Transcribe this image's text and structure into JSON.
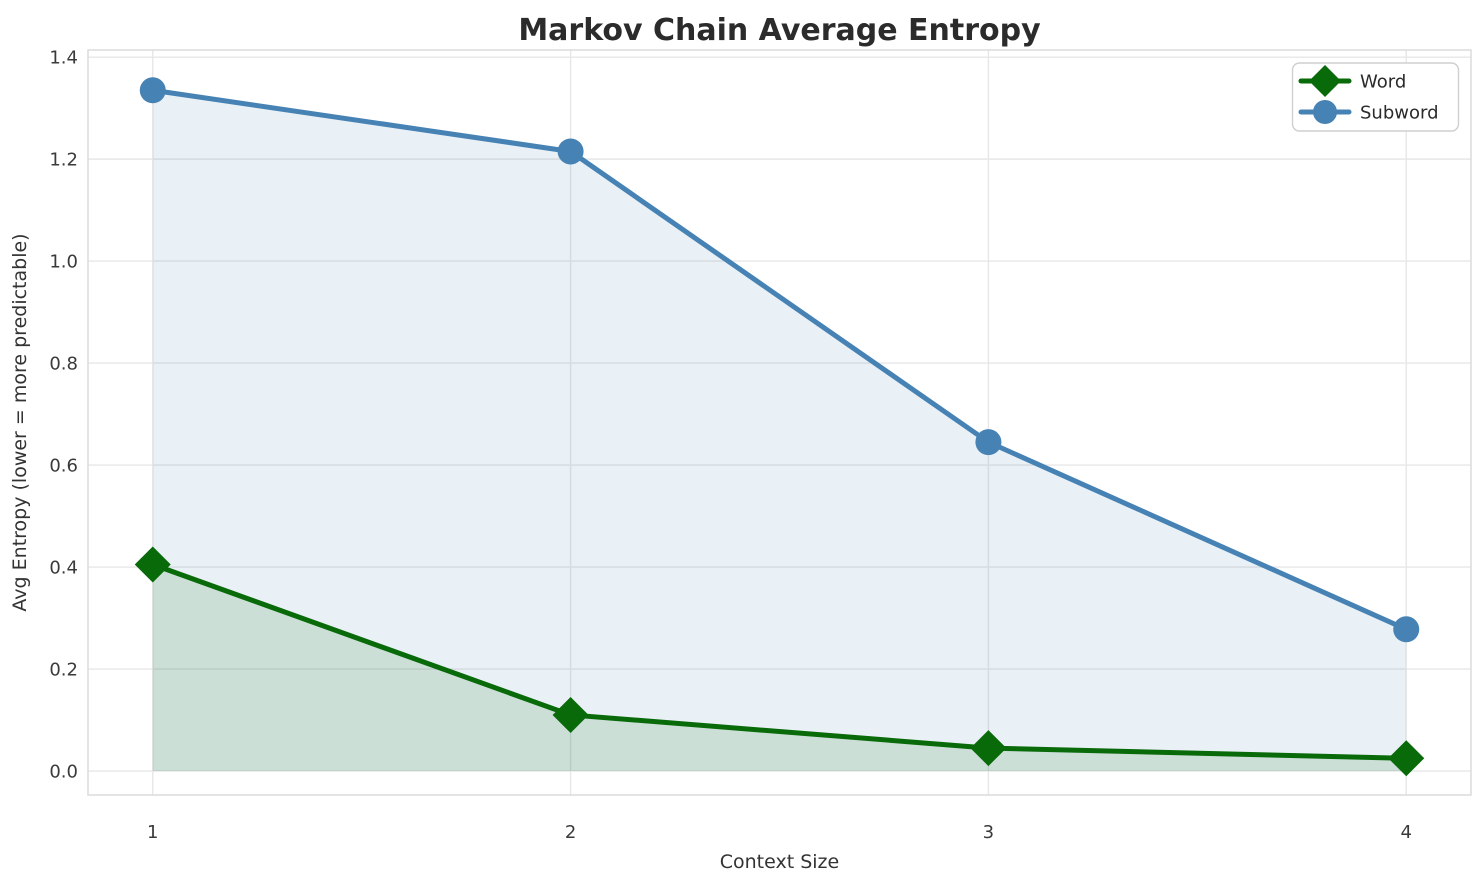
{
  "figure": {
    "title": "Markov Chain Average Entropy",
    "xlabel": "Context Size",
    "ylabel": "Avg Entropy (lower = more predictable)",
    "background": "#ffffff"
  },
  "chart_data": {
    "type": "line",
    "title": "Markov Chain Average Entropy",
    "xlabel": "Context Size",
    "ylabel": "Avg Entropy (lower = more predictable)",
    "x": [
      1,
      2,
      3,
      4
    ],
    "series": [
      {
        "name": "Word",
        "values": [
          0.405,
          0.11,
          0.045,
          0.025
        ],
        "color": "#086a08",
        "fill_color": "rgba(8,106,8,0.13)",
        "marker": "diamond"
      },
      {
        "name": "Subword",
        "values": [
          1.335,
          1.215,
          0.645,
          0.278
        ],
        "color": "#4682b4",
        "fill_color": "rgba(70,130,180,0.12)",
        "marker": "circle"
      }
    ],
    "xticks": [
      "1",
      "2",
      "3",
      "4"
    ],
    "yticks": [
      "0.0",
      "0.2",
      "0.4",
      "0.6",
      "0.8",
      "1.0",
      "1.2",
      "1.4"
    ],
    "xlim": [
      0.845,
      4.155
    ],
    "ylim": [
      -0.047,
      1.414
    ],
    "area_baseline": 0,
    "grid": true,
    "legend_position": "upper right",
    "colors": {
      "grid": "#e7e7e7",
      "spine": "#d9d9d9",
      "legend_border": "#cfcfcf",
      "legend_bg": "#ffffff"
    }
  }
}
